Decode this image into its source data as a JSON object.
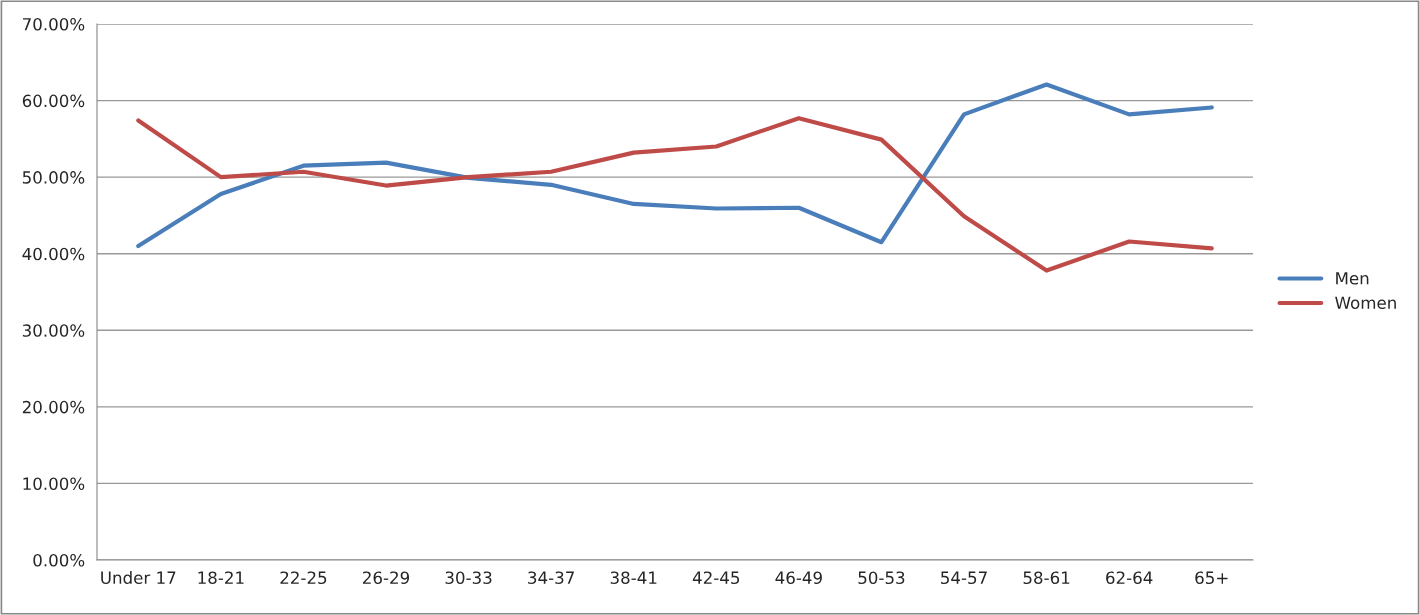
{
  "chart_data": {
    "type": "line",
    "categories": [
      "Under 17",
      "18-21",
      "22-25",
      "26-29",
      "30-33",
      "34-37",
      "38-41",
      "42-45",
      "46-49",
      "50-53",
      "54-57",
      "58-61",
      "62-64",
      "65+"
    ],
    "series": [
      {
        "name": "Men",
        "color": "#4a7ebb",
        "values": [
          41.0,
          47.8,
          51.5,
          51.9,
          49.9,
          49.0,
          46.5,
          45.9,
          46.0,
          41.5,
          58.2,
          62.1,
          58.2,
          59.1
        ]
      },
      {
        "name": "Women",
        "color": "#be4b48",
        "values": [
          57.4,
          50.0,
          50.7,
          48.9,
          50.0,
          50.7,
          53.2,
          54.0,
          57.7,
          54.9,
          44.9,
          37.8,
          41.6,
          40.7
        ]
      }
    ],
    "ylim": [
      0,
      70
    ],
    "yticks": [
      {
        "value": 0,
        "label": "0.00%"
      },
      {
        "value": 10,
        "label": "10.00%"
      },
      {
        "value": 20,
        "label": "20.00%"
      },
      {
        "value": 30,
        "label": "30.00%"
      },
      {
        "value": 40,
        "label": "40.00%"
      },
      {
        "value": 50,
        "label": "50.00%"
      },
      {
        "value": 60,
        "label": "60.00%"
      },
      {
        "value": 70,
        "label": "70.00%"
      }
    ],
    "grid": "y",
    "legend": "right",
    "marker": "none",
    "line_style": "solid"
  }
}
